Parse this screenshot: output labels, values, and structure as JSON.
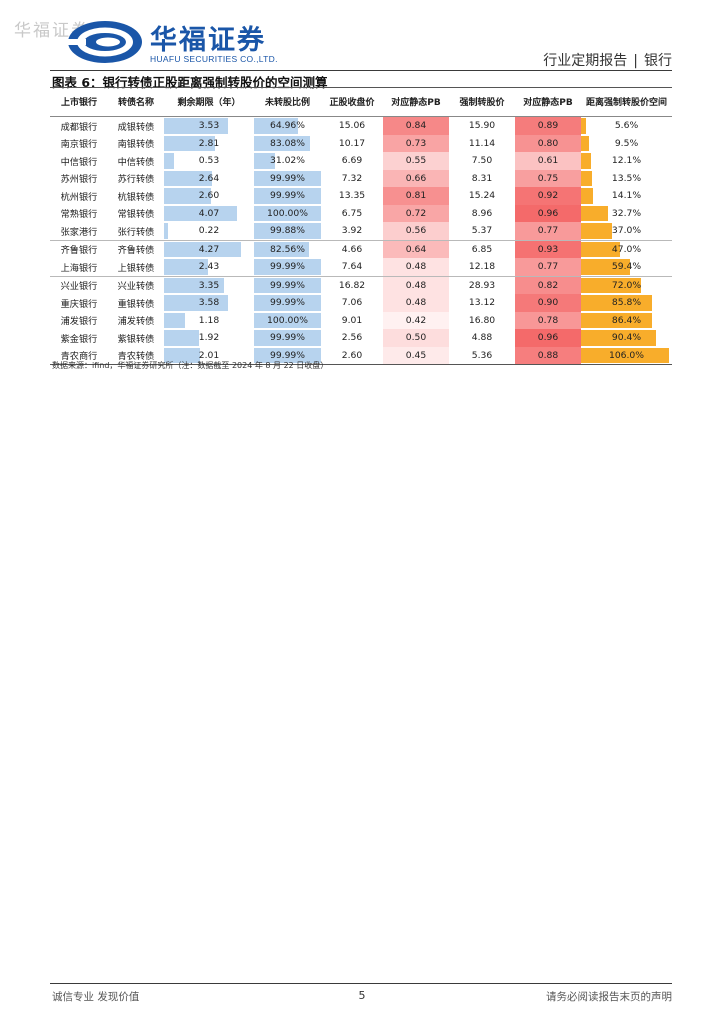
{
  "watermark": "华福证券",
  "logo": {
    "cn": "华福证券",
    "en": "HUAFU SECURITIES CO.,LTD."
  },
  "header": {
    "report_type": "行业定期报告",
    "separator": "|",
    "industry": "银行"
  },
  "figure_title": "图表 6：银行转债正股距离强制转股价的空间测算",
  "table": {
    "headers": [
      "上市银行",
      "转债名称",
      "剩余期限（年）",
      "未转股比例",
      "正股收盘价",
      "对应静态PB",
      "强制转股价",
      "对应静态PB",
      "距离强制转股价空间"
    ],
    "colors": {
      "blue_bar": "#b7d3ee",
      "orange_bar": "#f8ad2b",
      "pb_high": "#f46a6a",
      "pb_low": "#fff1f1"
    },
    "rows": [
      {
        "bank": "成都银行",
        "bond": "成银转债",
        "term": "3.53",
        "term_v": 3.53,
        "ratio": "64.96%",
        "ratio_v": 64.96,
        "close": "15.06",
        "pb1": "0.84",
        "pb1_v": 0.84,
        "force": "15.90",
        "pb2": "0.89",
        "pb2_v": 0.89,
        "space": "5.6%",
        "space_v": 5.6
      },
      {
        "bank": "南京银行",
        "bond": "南银转债",
        "term": "2.81",
        "term_v": 2.81,
        "ratio": "83.08%",
        "ratio_v": 83.08,
        "close": "10.17",
        "pb1": "0.73",
        "pb1_v": 0.73,
        "force": "11.14",
        "pb2": "0.80",
        "pb2_v": 0.8,
        "space": "9.5%",
        "space_v": 9.5
      },
      {
        "bank": "中信银行",
        "bond": "中信转债",
        "term": "0.53",
        "term_v": 0.53,
        "ratio": "31.02%",
        "ratio_v": 31.02,
        "close": "6.69",
        "pb1": "0.55",
        "pb1_v": 0.55,
        "force": "7.50",
        "pb2": "0.61",
        "pb2_v": 0.61,
        "space": "12.1%",
        "space_v": 12.1
      },
      {
        "bank": "苏州银行",
        "bond": "苏行转债",
        "term": "2.64",
        "term_v": 2.64,
        "ratio": "99.99%",
        "ratio_v": 99.99,
        "close": "7.32",
        "pb1": "0.66",
        "pb1_v": 0.66,
        "force": "8.31",
        "pb2": "0.75",
        "pb2_v": 0.75,
        "space": "13.5%",
        "space_v": 13.5
      },
      {
        "bank": "杭州银行",
        "bond": "杭银转债",
        "term": "2.60",
        "term_v": 2.6,
        "ratio": "99.99%",
        "ratio_v": 99.99,
        "close": "13.35",
        "pb1": "0.81",
        "pb1_v": 0.81,
        "force": "15.24",
        "pb2": "0.92",
        "pb2_v": 0.92,
        "space": "14.1%",
        "space_v": 14.1
      },
      {
        "bank": "常熟银行",
        "bond": "常银转债",
        "term": "4.07",
        "term_v": 4.07,
        "ratio": "100.00%",
        "ratio_v": 100.0,
        "close": "6.75",
        "pb1": "0.72",
        "pb1_v": 0.72,
        "force": "8.96",
        "pb2": "0.96",
        "pb2_v": 0.96,
        "space": "32.7%",
        "space_v": 32.7
      },
      {
        "bank": "张家港行",
        "bond": "张行转债",
        "term": "0.22",
        "term_v": 0.22,
        "ratio": "99.88%",
        "ratio_v": 99.88,
        "close": "3.92",
        "pb1": "0.56",
        "pb1_v": 0.56,
        "force": "5.37",
        "pb2": "0.77",
        "pb2_v": 0.77,
        "space": "37.0%",
        "space_v": 37.0
      },
      {
        "bank": "齐鲁银行",
        "bond": "齐鲁转债",
        "term": "4.27",
        "term_v": 4.27,
        "ratio": "82.56%",
        "ratio_v": 82.56,
        "close": "4.66",
        "pb1": "0.64",
        "pb1_v": 0.64,
        "force": "6.85",
        "pb2": "0.93",
        "pb2_v": 0.93,
        "space": "47.0%",
        "space_v": 47.0
      },
      {
        "bank": "上海银行",
        "bond": "上银转债",
        "term": "2.43",
        "term_v": 2.43,
        "ratio": "99.99%",
        "ratio_v": 99.99,
        "close": "7.64",
        "pb1": "0.48",
        "pb1_v": 0.48,
        "force": "12.18",
        "pb2": "0.77",
        "pb2_v": 0.77,
        "space": "59.4%",
        "space_v": 59.4
      },
      {
        "bank": "兴业银行",
        "bond": "兴业转债",
        "term": "3.35",
        "term_v": 3.35,
        "ratio": "99.99%",
        "ratio_v": 99.99,
        "close": "16.82",
        "pb1": "0.48",
        "pb1_v": 0.48,
        "force": "28.93",
        "pb2": "0.82",
        "pb2_v": 0.82,
        "space": "72.0%",
        "space_v": 72.0
      },
      {
        "bank": "重庆银行",
        "bond": "重银转债",
        "term": "3.58",
        "term_v": 3.58,
        "ratio": "99.99%",
        "ratio_v": 99.99,
        "close": "7.06",
        "pb1": "0.48",
        "pb1_v": 0.48,
        "force": "13.12",
        "pb2": "0.90",
        "pb2_v": 0.9,
        "space": "85.8%",
        "space_v": 85.8
      },
      {
        "bank": "浦发银行",
        "bond": "浦发转债",
        "term": "1.18",
        "term_v": 1.18,
        "ratio": "100.00%",
        "ratio_v": 100.0,
        "close": "9.01",
        "pb1": "0.42",
        "pb1_v": 0.42,
        "force": "16.80",
        "pb2": "0.78",
        "pb2_v": 0.78,
        "space": "86.4%",
        "space_v": 86.4
      },
      {
        "bank": "紫金银行",
        "bond": "紫银转债",
        "term": "1.92",
        "term_v": 1.92,
        "ratio": "99.99%",
        "ratio_v": 99.99,
        "close": "2.56",
        "pb1": "0.50",
        "pb1_v": 0.5,
        "force": "4.88",
        "pb2": "0.96",
        "pb2_v": 0.96,
        "space": "90.4%",
        "space_v": 90.4
      },
      {
        "bank": "青农商行",
        "bond": "青农转债",
        "term": "2.01",
        "term_v": 2.01,
        "ratio": "99.99%",
        "ratio_v": 99.99,
        "close": "2.60",
        "pb1": "0.45",
        "pb1_v": 0.45,
        "force": "5.36",
        "pb2": "0.88",
        "pb2_v": 0.88,
        "space": "106.0%",
        "space_v": 106.0
      }
    ]
  },
  "source": "数据来源：ifind，华福证券研究所（注：数据截至 2024 年 8 月 22 日收盘）",
  "footer": {
    "left": "诚信专业  发现价值",
    "page": "5",
    "right": "请务必阅读报告末页的声明"
  }
}
